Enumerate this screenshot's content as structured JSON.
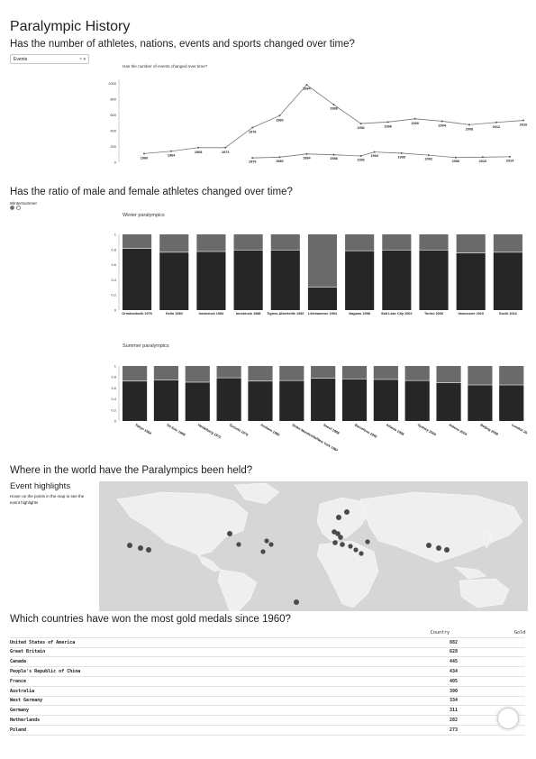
{
  "page": {
    "title": "Paralympic History"
  },
  "section1": {
    "heading": "Has the number of athletes, nations, events and sports changed over time?",
    "dropdown": {
      "selected": "Events",
      "clear": "×",
      "arrow": "▾"
    },
    "chart_title": "Has the number of events changed over time?"
  },
  "section2": {
    "heading": "Has the ratio of male and female athletes changed over time?",
    "toggle_label": "WinterSummer",
    "winter_title": "Winter paralympics",
    "summer_title": "Summer paralympics"
  },
  "section3": {
    "heading": "Where in the world have the Paralympics been held?",
    "subheading": "Event highlights",
    "hint": "Hover on the points in the map to see the event highlights"
  },
  "section4": {
    "heading": "Which countries have won the most gold medals since 1960?",
    "col_country": "Country",
    "col_gold": "Gold",
    "rows": [
      {
        "country": "United States of America",
        "gold": "882"
      },
      {
        "country": "Great Britain",
        "gold": "628"
      },
      {
        "country": "Canada",
        "gold": "445"
      },
      {
        "country": "People's Republic of China",
        "gold": "434"
      },
      {
        "country": "France",
        "gold": "405"
      },
      {
        "country": "Australia",
        "gold": "390"
      },
      {
        "country": "West Germany",
        "gold": "334"
      },
      {
        "country": "Germany",
        "gold": "311"
      },
      {
        "country": "Netherlands",
        "gold": "282"
      },
      {
        "country": "Poland",
        "gold": "273"
      }
    ]
  },
  "chart_data": [
    {
      "type": "line",
      "title": "Has the number of events changed over time?",
      "ylim": [
        0,
        1050
      ],
      "yticks": [
        "0",
        "200",
        "400",
        "600",
        "800",
        "1000"
      ],
      "series": [
        {
          "points": [
            [
              "1960",
              110
            ],
            [
              "1964",
              140
            ],
            [
              "1968",
              185
            ],
            [
              "1972",
              185
            ],
            [
              "1976",
              440
            ],
            [
              "1980",
              590
            ],
            [
              "1984",
              980
            ],
            [
              "1988",
              730
            ],
            [
              "1992",
              490
            ],
            [
              "1996",
              510
            ],
            [
              "2000",
              550
            ],
            [
              "2004",
              520
            ],
            [
              "2008",
              475
            ],
            [
              "2012",
              505
            ],
            [
              "2016",
              530
            ]
          ]
        },
        {
          "points": [
            [
              "1976",
              55
            ],
            [
              "1980",
              65
            ],
            [
              "1984",
              105
            ],
            [
              "1988",
              95
            ],
            [
              "1992",
              80
            ],
            [
              "1994",
              130
            ],
            [
              "1998",
              115
            ],
            [
              "2002",
              90
            ],
            [
              "2006",
              60
            ],
            [
              "2010",
              65
            ],
            [
              "2014",
              70
            ]
          ]
        }
      ]
    },
    {
      "type": "bar",
      "title": "Winter paralympics",
      "ylim": [
        0,
        1
      ],
      "yticks": [
        "0",
        "0.2",
        "0.4",
        "0.6",
        "0.8",
        "1"
      ],
      "categories": [
        "Ornskoldsvik 1976",
        "Geilo 1980",
        "Innsbruck 1984",
        "Innsbruck 1988",
        "Tignes-Albertville 1992",
        "Lillehammer 1994",
        "Nagano 1998",
        "Salt Lake City 2002",
        "Torino 2006",
        "Vancouver 2010",
        "Sochi 2014"
      ],
      "series": [
        {
          "values": [
            0.81,
            0.76,
            0.77,
            0.79,
            0.79,
            0.3,
            0.78,
            0.79,
            0.79,
            0.75,
            0.76
          ]
        },
        {
          "values": [
            0.19,
            0.24,
            0.23,
            0.21,
            0.21,
            0.7,
            0.22,
            0.21,
            0.21,
            0.25,
            0.24
          ]
        }
      ]
    },
    {
      "type": "bar",
      "title": "Summer paralympics",
      "ylim": [
        0,
        1
      ],
      "yticks": [
        "0",
        "0.2",
        "0.4",
        "0.6",
        "0.8",
        "1"
      ],
      "categories": [
        "Tokyo 1964",
        "Tel Aviv 1968",
        "Heidelberg 1972",
        "Toronto 1976",
        "Arnhem 1980",
        "Stoke Mandeville/New York 1984",
        "Seoul 1988",
        "Barcelona 1992",
        "Atlanta 1996",
        "Sydney 2000",
        "Athens 2004",
        "Beijing 2008",
        "London 2012"
      ],
      "series": [
        {
          "values": [
            0.72,
            0.74,
            0.7,
            0.78,
            0.72,
            0.73,
            0.77,
            0.76,
            0.75,
            0.73,
            0.69,
            0.65,
            0.65
          ]
        },
        {
          "values": [
            0.28,
            0.26,
            0.3,
            0.22,
            0.28,
            0.27,
            0.23,
            0.24,
            0.25,
            0.27,
            0.31,
            0.35,
            0.35
          ]
        }
      ]
    }
  ]
}
